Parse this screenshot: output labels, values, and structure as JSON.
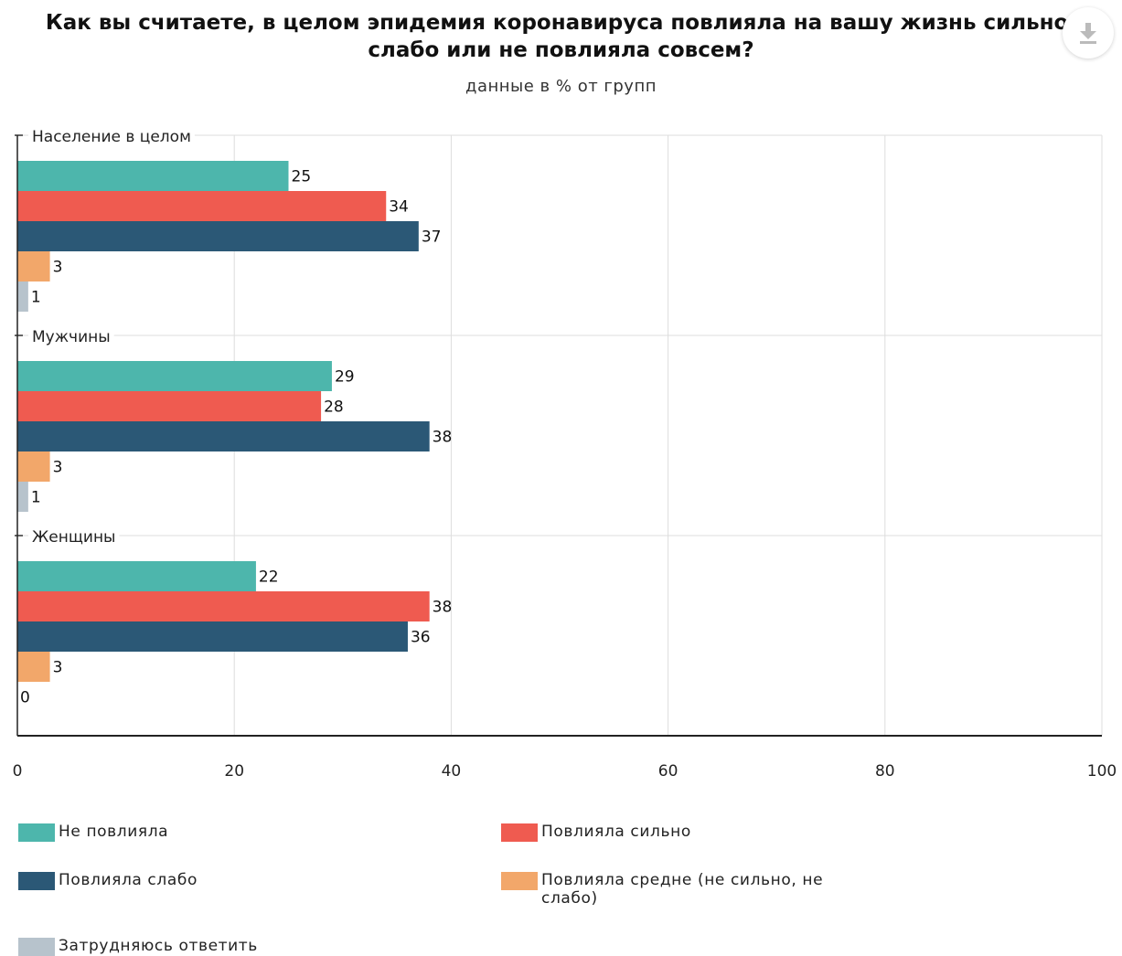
{
  "chart_data": {
    "type": "bar",
    "orientation": "horizontal",
    "title": "Как вы считаете, в целом эпидемия коронавируса повлияла на вашу жизнь сильно, слабо или не повлияла совсем?",
    "subtitle": "данные в % от групп",
    "categories": [
      "Население в целом",
      "Мужчины",
      "Женщины"
    ],
    "series": [
      {
        "name": "Не повлияла",
        "color": "#4db6ac",
        "values": [
          25,
          29,
          22
        ]
      },
      {
        "name": "Повлияла сильно",
        "color": "#ef5b50",
        "values": [
          34,
          28,
          38
        ]
      },
      {
        "name": "Повлияла слабо",
        "color": "#2b5876",
        "values": [
          37,
          38,
          36
        ]
      },
      {
        "name": "Повлияла средне (не сильно, не слабо)",
        "color": "#f2a76a",
        "values": [
          3,
          3,
          3
        ]
      },
      {
        "name": "Затрудняюсь ответить",
        "color": "#b7c3cc",
        "values": [
          1,
          1,
          0
        ]
      }
    ],
    "xlim": [
      0,
      100
    ],
    "xticks": [
      0,
      20,
      40,
      60,
      80,
      100
    ],
    "grid": true,
    "legend_position": "bottom"
  },
  "icons": {
    "download": "download-icon"
  }
}
